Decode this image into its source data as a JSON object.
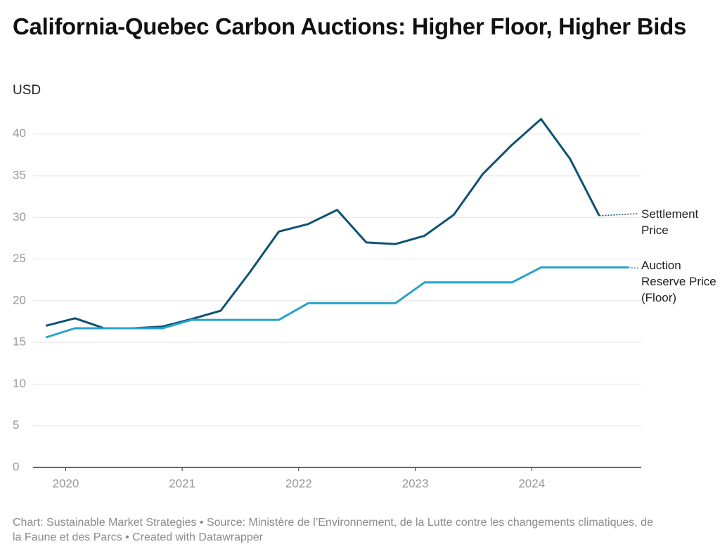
{
  "chart_data": {
    "type": "line",
    "title": "California-Quebec Carbon Auctions: Higher Floor, Higher Bids",
    "y_label": "USD",
    "footer": "Chart: Sustainable Market Strategies • Source: Ministère de l’Environnement, de la Lutte contre les changements climatiques, de la Faune et des Parcs • Created with Datawrapper",
    "x": [
      2019.83,
      2020.08,
      2020.33,
      2020.58,
      2020.83,
      2021.08,
      2021.33,
      2021.58,
      2021.83,
      2022.08,
      2022.33,
      2022.58,
      2022.83,
      2023.08,
      2023.33,
      2023.58,
      2023.83,
      2024.08,
      2024.33,
      2024.58,
      2024.83
    ],
    "series": [
      {
        "name": "Settlement Price",
        "color": "#0e5273",
        "values": [
          17.0,
          17.9,
          16.7,
          16.7,
          16.9,
          17.8,
          18.8,
          23.4,
          28.3,
          29.2,
          30.9,
          27.0,
          26.8,
          27.8,
          30.3,
          35.2,
          38.7,
          41.8,
          37.0,
          30.2,
          null
        ]
      },
      {
        "name": "Auction Reserve Price (Floor)",
        "color": "#27a2cc",
        "values": [
          15.6,
          16.7,
          16.7,
          16.7,
          16.7,
          17.7,
          17.7,
          17.7,
          17.7,
          19.7,
          19.7,
          19.7,
          19.7,
          22.2,
          22.2,
          22.2,
          22.2,
          24.0,
          24.0,
          24.0,
          24.0
        ]
      }
    ],
    "xlim": [
      2019.72,
      2024.94
    ],
    "xticks": [
      2020,
      2021,
      2022,
      2023,
      2024
    ],
    "ylim": [
      0,
      42
    ],
    "yticks": [
      0,
      5,
      10,
      15,
      20,
      25,
      30,
      35,
      40
    ],
    "grid": true
  }
}
